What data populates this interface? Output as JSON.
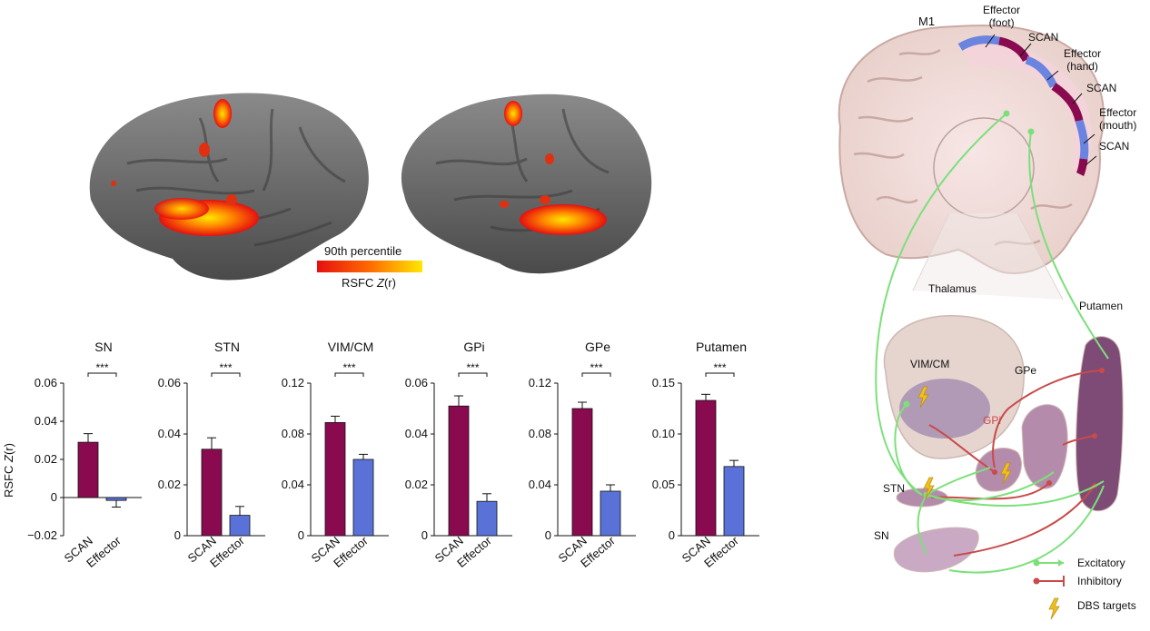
{
  "brain_maps": {
    "colorbar_top_label": "90th percentile",
    "colorbar_bottom_label_prefix": "RSFC ",
    "colorbar_bottom_label_italic": "Z",
    "colorbar_bottom_label_suffix": "(r)",
    "colormap": [
      "#e60f0f",
      "#ff6a00",
      "#ffe800"
    ]
  },
  "colors": {
    "scan": "#8a0a4f",
    "effector": "#5a72d8",
    "excitatory": "#7ce07a",
    "inhibitory": "#c94a4a",
    "dbs": "#f0c020"
  },
  "ylabel_prefix": "RSFC ",
  "ylabel_italic": "Z",
  "ylabel_suffix": "(r)",
  "chart_data": [
    {
      "type": "bar",
      "title": "SN",
      "categories": [
        "SCAN",
        "Effector"
      ],
      "values": [
        0.029,
        -0.0015
      ],
      "errors": [
        0.0045,
        0.0035
      ],
      "ylim": [
        -0.02,
        0.06
      ],
      "ticks": [
        -0.02,
        0,
        0.02,
        0.04,
        0.06
      ],
      "tick_labels": [
        "−0.02",
        "0",
        "0.02",
        "0.04",
        "0.06"
      ],
      "significance": "***"
    },
    {
      "type": "bar",
      "title": "STN",
      "categories": [
        "SCAN",
        "Effector"
      ],
      "values": [
        0.034,
        0.008
      ],
      "errors": [
        0.0045,
        0.0035
      ],
      "ylim": [
        0,
        0.06
      ],
      "ticks": [
        0,
        0.02,
        0.04,
        0.06
      ],
      "tick_labels": [
        "0",
        "0.02",
        "0.04",
        "0.06"
      ],
      "significance": "***"
    },
    {
      "type": "bar",
      "title": "VIM/CM",
      "categories": [
        "SCAN",
        "Effector"
      ],
      "values": [
        0.089,
        0.06
      ],
      "errors": [
        0.005,
        0.004
      ],
      "ylim": [
        0,
        0.12
      ],
      "ticks": [
        0,
        0.04,
        0.08,
        0.12
      ],
      "tick_labels": [
        "0",
        "0.04",
        "0.08",
        "0.12"
      ],
      "significance": "***"
    },
    {
      "type": "bar",
      "title": "GPi",
      "categories": [
        "SCAN",
        "Effector"
      ],
      "values": [
        0.051,
        0.0135
      ],
      "errors": [
        0.004,
        0.003
      ],
      "ylim": [
        0,
        0.06
      ],
      "ticks": [
        0,
        0.02,
        0.04,
        0.06
      ],
      "tick_labels": [
        "0",
        "0.02",
        "0.04",
        "0.06"
      ],
      "significance": "***"
    },
    {
      "type": "bar",
      "title": "GPe",
      "categories": [
        "SCAN",
        "Effector"
      ],
      "values": [
        0.1,
        0.035
      ],
      "errors": [
        0.005,
        0.005
      ],
      "ylim": [
        0,
        0.12
      ],
      "ticks": [
        0,
        0.04,
        0.08,
        0.12
      ],
      "tick_labels": [
        "0",
        "0.04",
        "0.08",
        "0.12"
      ],
      "significance": "***"
    },
    {
      "type": "bar",
      "title": "Putamen",
      "categories": [
        "SCAN",
        "Effector"
      ],
      "values": [
        0.133,
        0.068
      ],
      "errors": [
        0.006,
        0.006
      ],
      "ylim": [
        0,
        0.15
      ],
      "ticks": [
        0,
        0.05,
        0.1,
        0.15
      ],
      "tick_labels": [
        "0",
        "0.05",
        "0.10",
        "0.15"
      ],
      "significance": "***"
    }
  ],
  "diagram": {
    "m1_label": "M1",
    "cortex_labels": [
      {
        "lines": [
          "Effector",
          "(foot)"
        ]
      },
      {
        "lines": [
          "SCAN"
        ]
      },
      {
        "lines": [
          "Effector",
          "(hand)"
        ]
      },
      {
        "lines": [
          "SCAN"
        ]
      },
      {
        "lines": [
          "Effector",
          "(mouth)"
        ]
      },
      {
        "lines": [
          "SCAN"
        ]
      }
    ],
    "thalamus": "Thalamus",
    "putamen": "Putamen",
    "vim_cm": "VIM/CM",
    "gpe": "GPe",
    "gpi": "GPi",
    "stn": "STN",
    "sn": "SN",
    "legend": {
      "excitatory": "Excitatory",
      "inhibitory": "Inhibitory",
      "dbs": "DBS targets"
    }
  }
}
